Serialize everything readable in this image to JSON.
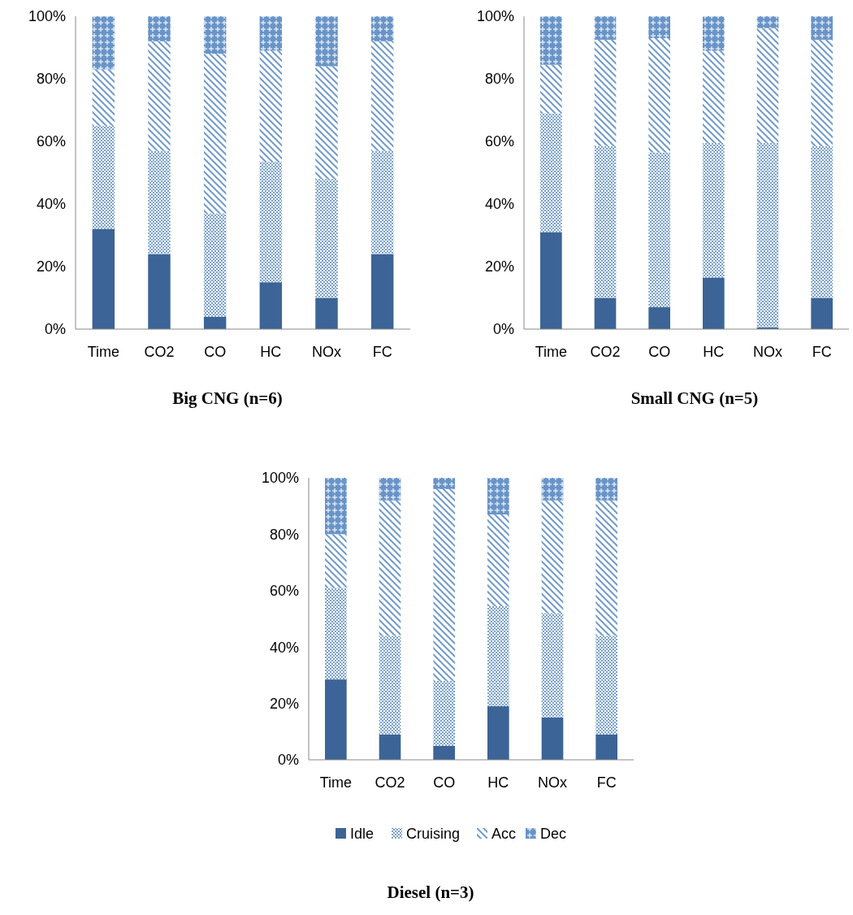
{
  "chart_data": [
    {
      "type": "bar",
      "stacked": true,
      "title": "Big CNG (n=6)",
      "categories": [
        "Time",
        "CO2",
        "CO",
        "HC",
        "NOx",
        "FC"
      ],
      "ylim": [
        0,
        100
      ],
      "yticks": [
        {
          "value": 0,
          "label": "0%"
        },
        {
          "value": 20,
          "label": "20%"
        },
        {
          "value": 40,
          "label": "40%"
        },
        {
          "value": 60,
          "label": "60%"
        },
        {
          "value": 80,
          "label": "80%"
        },
        {
          "value": 100,
          "label": "100%"
        }
      ],
      "legend": false,
      "series": [
        {
          "color": "#3c6496",
          "values": [
            32,
            24,
            4,
            15,
            10,
            24
          ]
        },
        {
          "color": "#4f81bd",
          "values": [
            33,
            33,
            33,
            38.5,
            38,
            33
          ]
        },
        {
          "color": "#4f81bd",
          "values": [
            18,
            35,
            51,
            35.5,
            36,
            35
          ]
        },
        {
          "color": "#4f81bd",
          "values": [
            17,
            8,
            12,
            11,
            16,
            8
          ]
        }
      ]
    },
    {
      "type": "bar",
      "stacked": true,
      "title": "Small CNG (n=5)",
      "categories": [
        "Time",
        "CO2",
        "CO",
        "HC",
        "NOx",
        "FC"
      ],
      "ylim": [
        0,
        100
      ],
      "yticks": [
        {
          "value": 0,
          "label": "0%"
        },
        {
          "value": 20,
          "label": "20%"
        },
        {
          "value": 40,
          "label": "40%"
        },
        {
          "value": 60,
          "label": "60%"
        },
        {
          "value": 80,
          "label": "80%"
        },
        {
          "value": 100,
          "label": "100%"
        }
      ],
      "legend": false,
      "series": [
        {
          "color": "#3c6496",
          "values": [
            31,
            10,
            7,
            16.5,
            0.6,
            10
          ]
        },
        {
          "color": "#4f81bd",
          "values": [
            38,
            48.5,
            49.5,
            43,
            58.9,
            48.5
          ]
        },
        {
          "color": "#4f81bd",
          "values": [
            15.5,
            34,
            36.5,
            29.5,
            36.7,
            34
          ]
        },
        {
          "color": "#4f81bd",
          "values": [
            15.5,
            7.5,
            7,
            11,
            3.8,
            7.5
          ]
        }
      ]
    },
    {
      "type": "bar",
      "stacked": true,
      "title": "Diesel (n=3)",
      "categories": [
        "Time",
        "CO2",
        "CO",
        "HC",
        "NOx",
        "FC"
      ],
      "ylim": [
        0,
        100
      ],
      "yticks": [
        {
          "value": 0,
          "label": "0%"
        },
        {
          "value": 20,
          "label": "20%"
        },
        {
          "value": 40,
          "label": "40%"
        },
        {
          "value": 60,
          "label": "60%"
        },
        {
          "value": 80,
          "label": "80%"
        },
        {
          "value": 100,
          "label": "100%"
        }
      ],
      "legend": "bottom",
      "series": [
        {
          "name": "Idle",
          "color": "#3c6496",
          "values": [
            28.5,
            9,
            5,
            19,
            15,
            9
          ]
        },
        {
          "name": "Cruising",
          "color": "#4f81bd",
          "values": [
            32.5,
            35,
            23,
            35.5,
            37,
            35
          ]
        },
        {
          "name": "Acc",
          "color": "#4f81bd",
          "values": [
            19,
            48,
            68,
            32.5,
            40,
            48
          ]
        },
        {
          "name": "Dec",
          "color": "#4f81bd",
          "values": [
            20,
            8,
            4,
            13,
            8,
            8
          ]
        }
      ]
    }
  ]
}
